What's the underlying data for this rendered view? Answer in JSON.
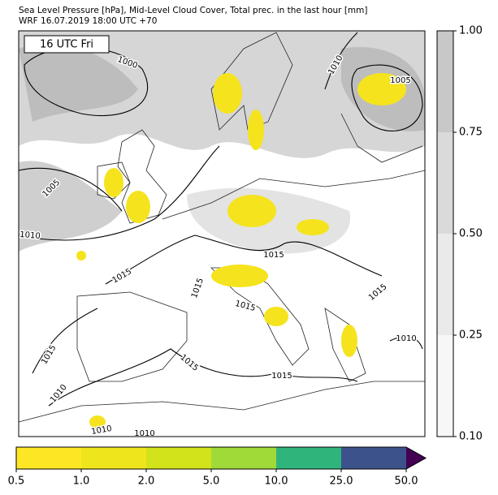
{
  "header": {
    "title": "Sea Level Pressure [hPa], Mid-Level Cloud Cover, Total prec. in the last hour [mm]",
    "subtitle": "WRF 16.07.2019 18:00 UTC +70"
  },
  "map": {
    "time_label": "16 UTC Fri",
    "isobar_labels": [
      "1000",
      "1005",
      "1010",
      "1005",
      "1010",
      "1015",
      "1015",
      "1015",
      "1015",
      "1015",
      "1010",
      "1015",
      "1015",
      "1010",
      "1015",
      "1010",
      "1010"
    ]
  },
  "cloud_colorbar": {
    "ticks": [
      {
        "value": 0.1,
        "label": "0.10"
      },
      {
        "value": 0.25,
        "label": "0.25"
      },
      {
        "value": 0.5,
        "label": "0.50"
      },
      {
        "value": 0.75,
        "label": "0.75"
      },
      {
        "value": 1,
        "label": "1.00"
      }
    ],
    "colors": [
      "#f7f7f7",
      "#eaeaea",
      "#dadada",
      "#c8c8c8"
    ]
  },
  "precip_colorbar": {
    "ticks": [
      0.5,
      {
        "value": 1,
        "label": "1.0"
      },
      {
        "value": 2,
        "label": "2.0"
      },
      {
        "value": 5,
        "label": "5.0"
      },
      {
        "value": 10,
        "label": "10.0"
      },
      {
        "value": 25,
        "label": "25.0"
      },
      {
        "value": 50,
        "label": "50.0"
      }
    ],
    "colors": [
      "#fde725",
      "#efe51c",
      "#d2e21b",
      "#a0da39",
      "#2fb47c",
      "#3b528b",
      "#440154"
    ]
  }
}
